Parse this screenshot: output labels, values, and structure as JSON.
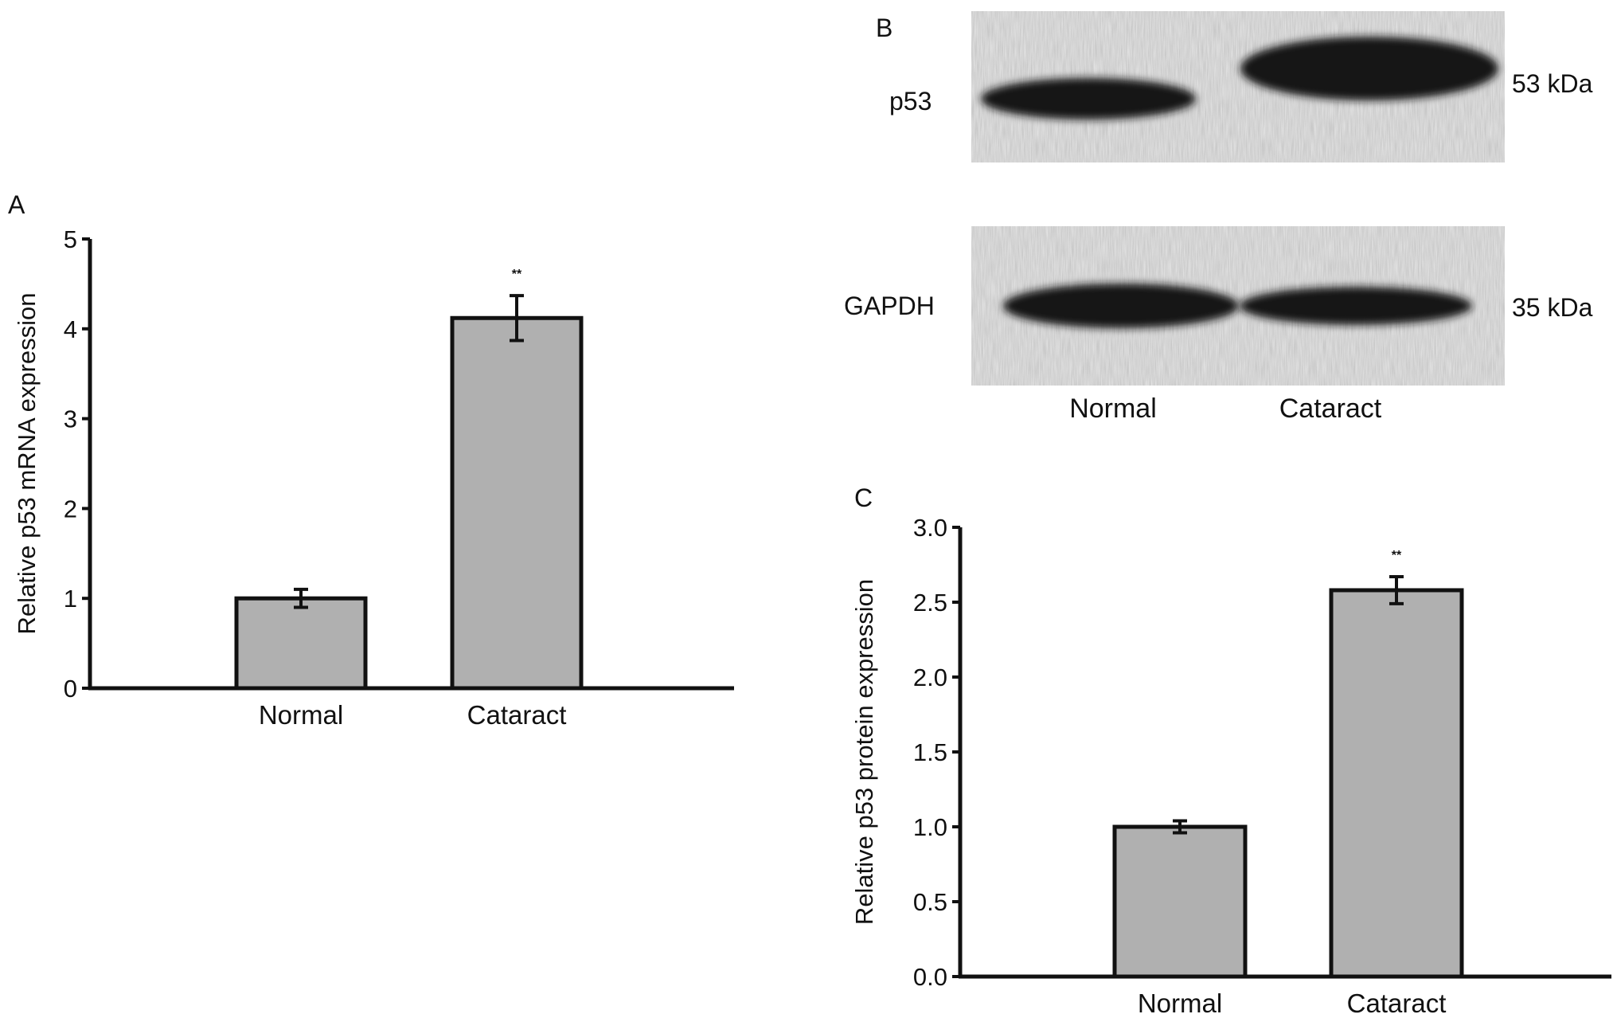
{
  "panels": {
    "a": "A",
    "b": "B",
    "c": "C"
  },
  "western_blot": {
    "rows": [
      {
        "protein": "p53",
        "size": "53 kDa",
        "band_intensity": [
          0.9,
          1.0
        ]
      },
      {
        "protein": "GAPDH",
        "size": "35 kDa",
        "band_intensity": [
          1.0,
          1.0
        ]
      }
    ],
    "lanes": [
      "Normal",
      "Cataract"
    ]
  },
  "colors": {
    "bar_fill": "#b0b0b0",
    "ink": "#111111",
    "blot_background": "#e9e9e9",
    "band": "#141414"
  },
  "chart_data": [
    {
      "panel": "A",
      "type": "bar",
      "categories": [
        "Normal",
        "Cataract"
      ],
      "values": [
        1.0,
        4.12
      ],
      "errors": [
        0.1,
        0.25
      ],
      "significance": [
        "",
        "**"
      ],
      "ylabel": "Relative p53 mRNA expression",
      "ylim": [
        0,
        5
      ],
      "yticks": [
        "0",
        "1",
        "2",
        "3",
        "4",
        "5"
      ],
      "grid": false
    },
    {
      "panel": "C",
      "type": "bar",
      "categories": [
        "Normal",
        "Cataract"
      ],
      "values": [
        1.0,
        2.58
      ],
      "errors": [
        0.04,
        0.09
      ],
      "significance": [
        "",
        "**"
      ],
      "ylabel": "Relative p53 protein expression",
      "ylim": [
        0,
        3
      ],
      "yticks": [
        "0.0",
        "0.5",
        "1.0",
        "1.5",
        "2.0",
        "2.5",
        "3.0"
      ],
      "grid": false
    }
  ]
}
